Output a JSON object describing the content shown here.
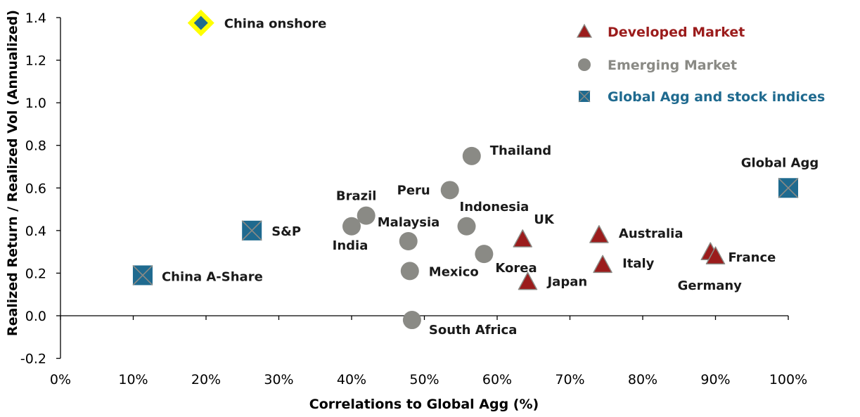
{
  "chart_data": {
    "type": "scatter",
    "xlabel": "Correlations to Global Agg (%)",
    "ylabel": "Realized Return / Realized Vol (Annualized)",
    "xlim": [
      0,
      100
    ],
    "ylim": [
      -0.2,
      1.4
    ],
    "x_ticks": [
      "0%",
      "10%",
      "20%",
      "30%",
      "40%",
      "50%",
      "60%",
      "70%",
      "80%",
      "90%",
      "100%"
    ],
    "y_ticks": [
      "-0.2",
      "0.0",
      "0.2",
      "0.4",
      "0.6",
      "0.8",
      "1.0",
      "1.2",
      "1.4"
    ],
    "grid": false,
    "legend_position": "top-right",
    "legend": [
      {
        "name": "Developed Market",
        "marker": "triangle",
        "color": "#9b1c1c"
      },
      {
        "name": "Emerging Market",
        "marker": "circle",
        "color": "#8a8a85"
      },
      {
        "name": "Global Agg and stock indices",
        "marker": "x-square",
        "color": "#1f6a8f"
      }
    ],
    "series": [
      {
        "name": "Developed Market",
        "marker": "triangle",
        "color": "#9b1c1c",
        "points": [
          {
            "label": "UK",
            "x": 63.5,
            "y": 0.36
          },
          {
            "label": "Japan",
            "x": 64.2,
            "y": 0.16
          },
          {
            "label": "Australia",
            "x": 74.0,
            "y": 0.38
          },
          {
            "label": "Italy",
            "x": 74.5,
            "y": 0.24
          },
          {
            "label": "Germany",
            "x": 89.3,
            "y": 0.3
          },
          {
            "label": "France",
            "x": 90.0,
            "y": 0.28
          }
        ]
      },
      {
        "name": "Emerging Market",
        "marker": "circle",
        "color": "#8a8a85",
        "points": [
          {
            "label": "Thailand",
            "x": 56.5,
            "y": 0.75
          },
          {
            "label": "Peru",
            "x": 53.5,
            "y": 0.59
          },
          {
            "label": "Brazil",
            "x": 42.0,
            "y": 0.47
          },
          {
            "label": "India",
            "x": 40.0,
            "y": 0.42
          },
          {
            "label": "Malaysia",
            "x": 47.8,
            "y": 0.35
          },
          {
            "label": "Indonesia",
            "x": 55.8,
            "y": 0.42
          },
          {
            "label": "Korea",
            "x": 58.2,
            "y": 0.29
          },
          {
            "label": "Mexico",
            "x": 48.0,
            "y": 0.21
          },
          {
            "label": "South Africa",
            "x": 48.3,
            "y": -0.02
          }
        ]
      },
      {
        "name": "Global Agg and stock indices",
        "marker": "x-square",
        "color": "#1f6a8f",
        "points": [
          {
            "label": "Global Agg",
            "x": 100.0,
            "y": 0.6
          },
          {
            "label": "S&P",
            "x": 26.3,
            "y": 0.4
          },
          {
            "label": "China A-Share",
            "x": 11.3,
            "y": 0.19
          }
        ]
      },
      {
        "name": "China onshore",
        "marker": "diamond-highlight",
        "color": "#1f6a8f",
        "highlight": "#ffff00",
        "points": [
          {
            "label": "China onshore",
            "x": 19.3,
            "y": 1.375
          }
        ]
      }
    ]
  }
}
